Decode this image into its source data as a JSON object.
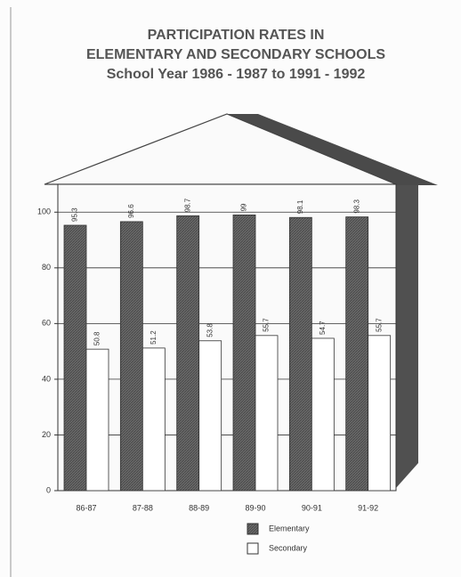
{
  "chart_data": {
    "type": "bar",
    "title": [
      "PARTICIPATION RATES IN",
      "ELEMENTARY AND SECONDARY SCHOOLS"
    ],
    "subtitle": "School Year 1986 - 1987 to 1991 - 1992",
    "categories": [
      "86-87",
      "87-88",
      "88-89",
      "89-90",
      "90-91",
      "91-92"
    ],
    "series": [
      {
        "name": "Elementary",
        "color": "#5a5a5a",
        "values": [
          95.3,
          96.6,
          98.7,
          99,
          98.1,
          98.3
        ]
      },
      {
        "name": "Secondary",
        "color": "#ffffff",
        "values": [
          50.8,
          51.2,
          53.8,
          55.7,
          54.7,
          55.7
        ]
      }
    ],
    "ylim": [
      0,
      110
    ],
    "yticks": [
      0,
      20,
      40,
      60,
      80,
      100
    ],
    "grid": true,
    "legend": "bottom"
  }
}
